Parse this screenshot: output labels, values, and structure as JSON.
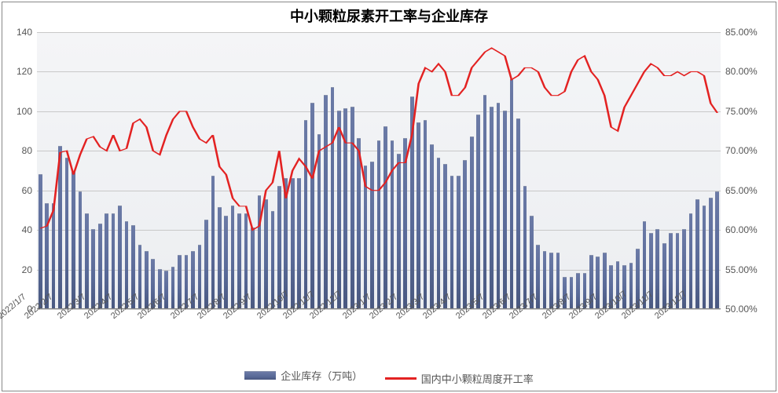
{
  "chart": {
    "type": "bar+line",
    "title": "中小颗粒尿素开工率与企业库存",
    "title_fontsize": 18,
    "background_color": "#ffffff",
    "plot_background_top": "#f4f5f7",
    "plot_background_bottom": "#eceef1",
    "grid_color": "#c8c8c8",
    "axis_text_color": "#555555",
    "left_axis": {
      "min": 0,
      "max": 140,
      "step": 20,
      "ticks": [
        0,
        20,
        40,
        60,
        80,
        100,
        120,
        140
      ]
    },
    "right_axis": {
      "min": 50.0,
      "max": 85.0,
      "step": 5.0,
      "ticks": [
        "50.00%",
        "55.00%",
        "60.00%",
        "65.00%",
        "70.00%",
        "75.00%",
        "80.00%",
        "85.00%"
      ]
    },
    "x_labels": {
      "labels": [
        "2022/1/7",
        "2022/2/7",
        "2022/3/7",
        "2022/4/7",
        "2022/5/7",
        "2022/6/7",
        "2022/7/7",
        "2022/8/7",
        "2022/9/7",
        "2022/10/7",
        "2022/11/7",
        "2022/12/7",
        "2023/1/7",
        "2023/2/7",
        "2023/3/7",
        "2023/4/7",
        "2023/5/7",
        "2023/6/7",
        "2023/7/7",
        "2023/8/7",
        "2023/9/7",
        "2023/10/7",
        "2023/11/7",
        "2023/12/7"
      ],
      "rotation": -40,
      "fontsize": 11
    },
    "series_bar": {
      "name": "企业库存（万吨）",
      "color_top": "#6b7aa6",
      "color_mid": "#596a98",
      "color_bottom": "#495880",
      "bar_width_ratio": 0.55,
      "values": [
        68,
        53,
        53,
        82,
        76,
        69,
        59,
        48,
        40,
        43,
        48,
        48,
        52,
        44,
        42,
        32,
        29,
        25,
        20,
        19,
        21,
        27,
        27,
        29,
        32,
        45,
        67,
        51,
        47,
        52,
        48,
        48,
        41,
        57,
        55,
        49,
        62,
        66,
        66,
        66,
        95,
        104,
        88,
        108,
        112,
        100,
        101,
        102,
        86,
        72,
        74,
        85,
        92,
        85,
        78,
        86,
        107,
        94,
        95,
        83,
        76,
        73,
        67,
        67,
        75,
        87,
        98,
        108,
        102,
        104,
        100,
        116,
        96,
        62,
        47,
        32,
        29,
        28,
        28,
        16,
        16,
        18,
        18,
        27,
        26,
        28,
        22,
        24,
        22,
        23,
        30,
        44,
        38,
        40,
        33,
        38,
        38,
        40,
        48,
        55,
        52,
        56,
        59
      ]
    },
    "series_line": {
      "name": "国内中小颗粒周度开工率",
      "color": "#e32222",
      "line_width": 3,
      "values_pct": [
        60.2,
        60.5,
        62.5,
        69.8,
        70.0,
        67.0,
        69.5,
        71.5,
        71.8,
        70.5,
        70.0,
        72.0,
        70.0,
        70.3,
        73.5,
        74.0,
        73.0,
        70.0,
        69.5,
        72.0,
        74.0,
        75.0,
        75.0,
        73.0,
        71.5,
        71.0,
        72.0,
        68.0,
        67.0,
        64.0,
        63.0,
        63.0,
        60.0,
        60.5,
        65.0,
        66.0,
        70.0,
        64.0,
        67.5,
        69.0,
        68.0,
        66.5,
        70.0,
        70.5,
        71.0,
        73.0,
        71.0,
        71.0,
        70.0,
        65.5,
        65.0,
        65.0,
        66.0,
        67.5,
        68.5,
        68.5,
        72.0,
        78.5,
        80.5,
        80.0,
        81.0,
        80.0,
        77.0,
        77.0,
        78.0,
        80.5,
        81.5,
        82.5,
        83.0,
        82.5,
        82.0,
        79.0,
        79.5,
        80.5,
        80.5,
        80.0,
        78.0,
        77.0,
        77.0,
        77.5,
        80.0,
        81.5,
        82.0,
        80.0,
        79.0,
        77.0,
        73.0,
        72.5,
        75.5,
        77.0,
        78.5,
        80.0,
        81.0,
        80.5,
        79.5,
        79.5,
        80.0,
        79.5,
        80.0,
        80.0,
        79.5,
        76.0,
        74.8
      ]
    },
    "legend": {
      "bar_label": "企业库存（万吨）",
      "line_label": "国内中小颗粒周度开工率",
      "fontsize": 13
    }
  }
}
